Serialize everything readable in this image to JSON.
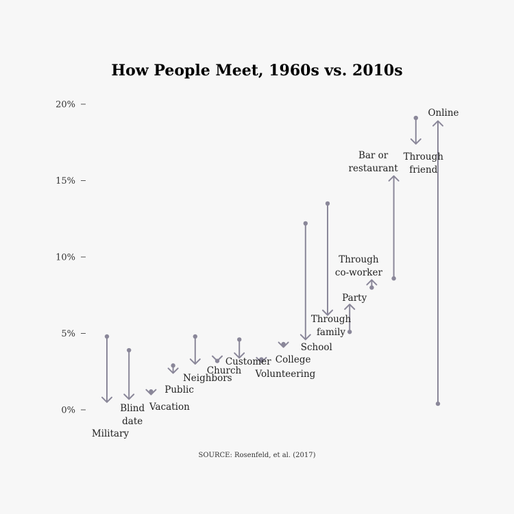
{
  "chart_data": {
    "type": "arrow",
    "title": "How People Meet, 1960s vs. 2010s",
    "source": "SOURCE: Rosenfeld, et al. (2017)",
    "ylim": [
      0,
      20
    ],
    "yticks": [
      {
        "value": 0,
        "label": "0%"
      },
      {
        "value": 5,
        "label": "5%"
      },
      {
        "value": 10,
        "label": "10%"
      },
      {
        "value": 15,
        "label": "15%"
      },
      {
        "value": 20,
        "label": "20%"
      }
    ],
    "series_names": [
      "1960s",
      "2010s"
    ],
    "categories": [
      {
        "label": [
          "Military"
        ],
        "start": 4.8,
        "end": 0.5
      },
      {
        "label": [
          "Blind",
          "date"
        ],
        "start": 3.9,
        "end": 0.7
      },
      {
        "label": [
          "Vacation"
        ],
        "start": 1.2,
        "end": 1.0
      },
      {
        "label": [
          "Public"
        ],
        "start": 2.9,
        "end": 2.4
      },
      {
        "label": [
          "Neighbors"
        ],
        "start": 4.8,
        "end": 3.0
      },
      {
        "label": [
          "Church"
        ],
        "start": 3.2,
        "end": 3.2
      },
      {
        "label": [
          "Customer"
        ],
        "start": 4.6,
        "end": 3.4
      },
      {
        "label": [
          "Volunteering"
        ],
        "start": 3.3,
        "end": 3.1
      },
      {
        "label": [
          "College"
        ],
        "start": 4.3,
        "end": 4.1
      },
      {
        "label": [
          "School"
        ],
        "start": 12.2,
        "end": 4.6
      },
      {
        "label": [
          "Through",
          "family"
        ],
        "start": 13.5,
        "end": 6.2
      },
      {
        "label": [
          "Party"
        ],
        "start": 5.1,
        "end": 6.9
      },
      {
        "label": [
          "Through",
          "co-worker"
        ],
        "start": 8.0,
        "end": 8.5
      },
      {
        "label": [
          "Bar or",
          "restaurant"
        ],
        "start": 8.6,
        "end": 15.3
      },
      {
        "label": [
          "Through",
          "friend"
        ],
        "start": 19.1,
        "end": 17.4
      },
      {
        "label": [
          "Online"
        ],
        "start": 0.4,
        "end": 18.9
      }
    ],
    "colors": {
      "arrow": "#8a8799",
      "dot": "#8a8799",
      "text": "#1a1a1a"
    },
    "grid": false
  }
}
